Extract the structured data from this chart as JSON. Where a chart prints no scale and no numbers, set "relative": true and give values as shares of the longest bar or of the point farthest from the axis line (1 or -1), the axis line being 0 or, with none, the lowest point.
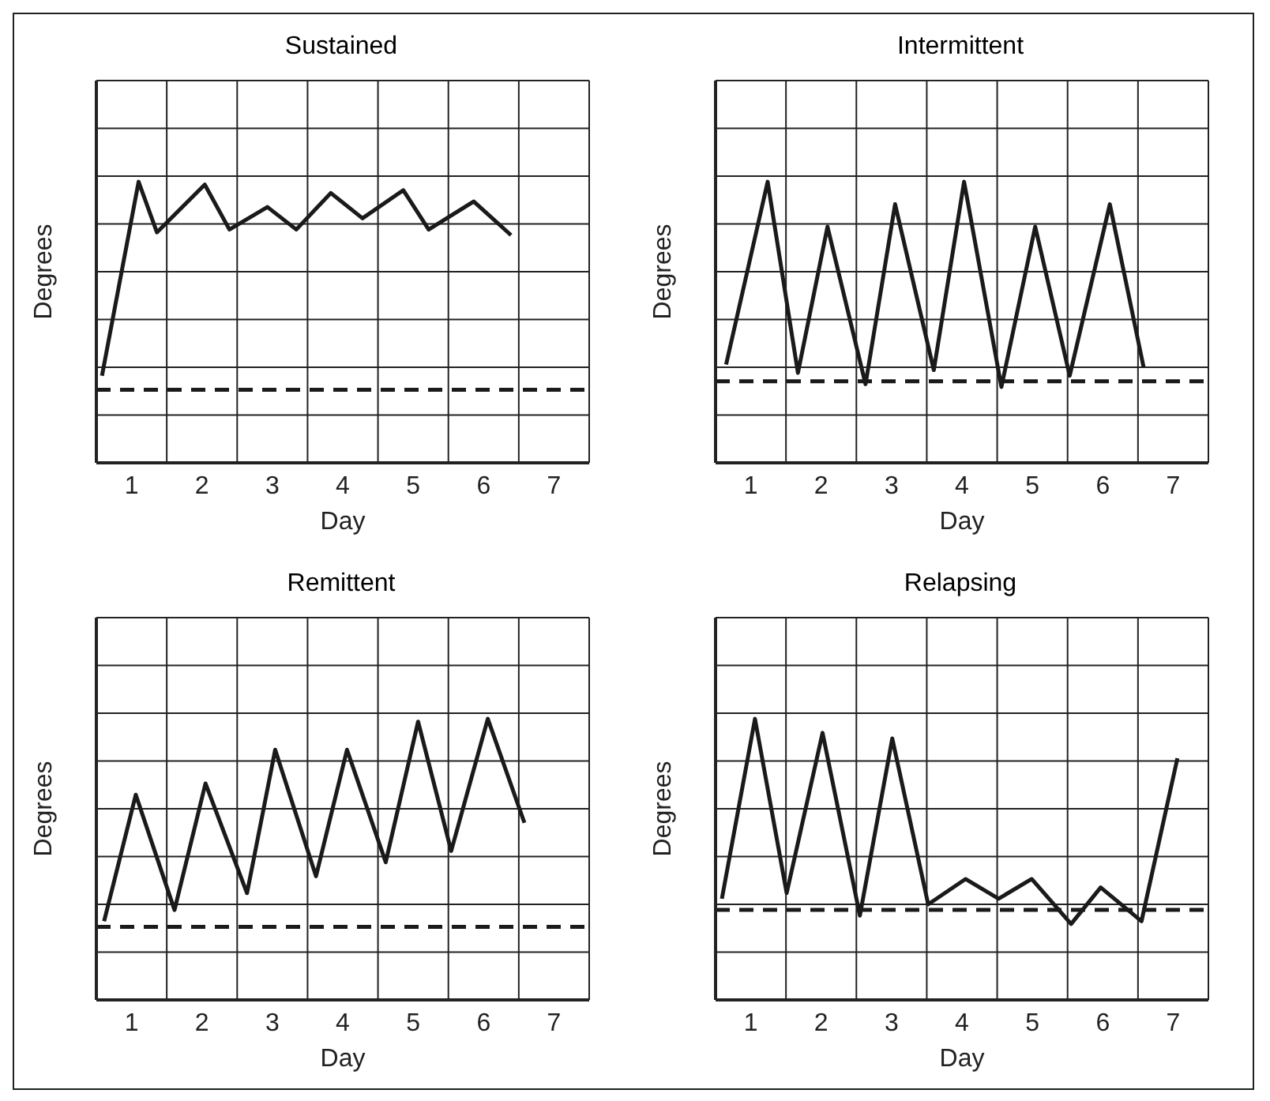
{
  "chart_data": [
    {
      "type": "line",
      "title": "Sustained",
      "xlabel": "Day",
      "ylabel": "Degrees",
      "relative": true,
      "xlim": [
        0.5,
        7.5
      ],
      "xticks": [
        1,
        2,
        3,
        4,
        5,
        6,
        7
      ],
      "grid": true,
      "line_style": "solid",
      "ref_lines": [
        {
          "axis": "y",
          "value": 0.26,
          "line_style": "dashed",
          "color": "#1a1a1a"
        }
      ],
      "series": [
        {
          "color": "#1a1a1a",
          "x": [
            0.58,
            1.1,
            1.36,
            2.04,
            2.39,
            2.93,
            3.34,
            3.83,
            4.28,
            4.86,
            5.22,
            5.86,
            6.39
          ],
          "values": [
            0.31,
            1,
            0.82,
            0.99,
            0.83,
            0.91,
            0.83,
            0.96,
            0.87,
            0.97,
            0.83,
            0.93,
            0.81
          ]
        }
      ]
    },
    {
      "type": "line",
      "title": "Intermittent",
      "xlabel": "Day",
      "ylabel": "Degrees",
      "relative": true,
      "xlim": [
        0.5,
        7.5
      ],
      "xticks": [
        1,
        2,
        3,
        4,
        5,
        6,
        7
      ],
      "grid": true,
      "line_style": "solid",
      "ref_lines": [
        {
          "axis": "y",
          "value": 0.29,
          "line_style": "dashed",
          "color": "#1a1a1a"
        }
      ],
      "series": [
        {
          "color": "#1a1a1a",
          "x": [
            0.65,
            1.24,
            1.67,
            2.09,
            2.63,
            3.05,
            3.6,
            4.03,
            4.56,
            5.04,
            5.53,
            6.1,
            6.58
          ],
          "values": [
            0.35,
            1,
            0.32,
            0.84,
            0.28,
            0.92,
            0.33,
            1,
            0.27,
            0.84,
            0.31,
            0.92,
            0.34
          ]
        }
      ]
    },
    {
      "type": "line",
      "title": "Remittent",
      "xlabel": "Day",
      "ylabel": "Degrees",
      "relative": true,
      "xlim": [
        0.5,
        7.5
      ],
      "xticks": [
        1,
        2,
        3,
        4,
        5,
        6,
        7
      ],
      "grid": true,
      "line_style": "solid",
      "ref_lines": [
        {
          "axis": "y",
          "value": 0.26,
          "line_style": "dashed",
          "color": "#1a1a1a"
        }
      ],
      "series": [
        {
          "color": "#1a1a1a",
          "x": [
            0.61,
            1.06,
            1.61,
            2.05,
            2.64,
            3.04,
            3.62,
            4.06,
            4.61,
            5.07,
            5.54,
            6.06,
            6.58
          ],
          "values": [
            0.28,
            0.73,
            0.32,
            0.77,
            0.38,
            0.89,
            0.44,
            0.89,
            0.49,
            0.99,
            0.53,
            1,
            0.63
          ]
        }
      ]
    },
    {
      "type": "line",
      "title": "Relapsing",
      "xlabel": "Day",
      "ylabel": "Degrees",
      "relative": true,
      "xlim": [
        0.5,
        7.5
      ],
      "xticks": [
        1,
        2,
        3,
        4,
        5,
        6,
        7
      ],
      "grid": true,
      "line_style": "solid",
      "ref_lines": [
        {
          "axis": "y",
          "value": 0.32,
          "line_style": "dashed",
          "color": "#1a1a1a"
        }
      ],
      "series": [
        {
          "color": "#1a1a1a",
          "x": [
            0.59,
            1.06,
            1.51,
            2.02,
            2.55,
            3.01,
            3.52,
            4.05,
            4.52,
            4.99,
            5.55,
            5.97,
            6.55,
            7.06
          ],
          "values": [
            0.36,
            1,
            0.38,
            0.95,
            0.3,
            0.93,
            0.34,
            0.43,
            0.36,
            0.43,
            0.27,
            0.4,
            0.28,
            0.86
          ]
        }
      ]
    }
  ]
}
